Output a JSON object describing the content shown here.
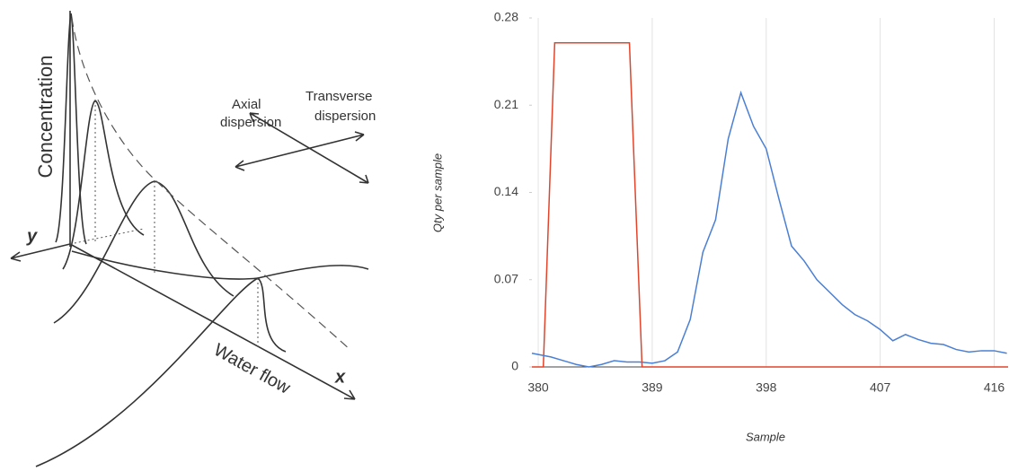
{
  "diagram": {
    "concentration_label": "Concentration",
    "axial_label": [
      "Axial",
      "dispersion"
    ],
    "transverse_label": [
      "Transverse",
      "dispersion"
    ],
    "y_axis_label": "y",
    "x_axis_label": "x",
    "flow_label": "Water flow"
  },
  "chart_data": {
    "type": "line",
    "y_label": "Qty per sample",
    "x_label": "Sample",
    "xlim": [
      379.5,
      417.1
    ],
    "xticks": [
      380,
      389,
      398,
      407,
      416
    ],
    "ylim": [
      0,
      0.28
    ],
    "yticks": [
      0,
      0.07,
      0.14,
      0.21,
      0.28
    ],
    "grid": true,
    "series": [
      {
        "color": "#e0452c",
        "x": [
          379.5,
          380.4,
          381.3,
          387.2,
          388.2,
          417.1
        ],
        "values": [
          0,
          0,
          0.26,
          0.26,
          0,
          0
        ]
      },
      {
        "color": "#4a7fd4",
        "x": [
          379.5,
          380,
          381,
          382,
          383,
          384,
          385,
          386,
          387,
          388,
          389,
          390,
          391,
          392,
          393,
          394,
          395,
          396,
          397,
          398,
          399,
          400,
          401,
          402,
          403,
          404,
          405,
          406,
          407,
          408,
          409,
          410,
          411,
          412,
          413,
          414,
          415,
          416,
          417
        ],
        "values": [
          0.011,
          0.01,
          0.008,
          0.005,
          0.002,
          0,
          0.002,
          0.005,
          0.004,
          0.004,
          0.003,
          0.005,
          0.012,
          0.038,
          0.092,
          0.118,
          0.183,
          0.22,
          0.193,
          0.175,
          0.135,
          0.097,
          0.085,
          0.07,
          0.06,
          0.05,
          0.042,
          0.037,
          0.03,
          0.021,
          0.026,
          0.022,
          0.019,
          0.018,
          0.014,
          0.012,
          0.013,
          0.013,
          0.011
        ]
      }
    ]
  }
}
